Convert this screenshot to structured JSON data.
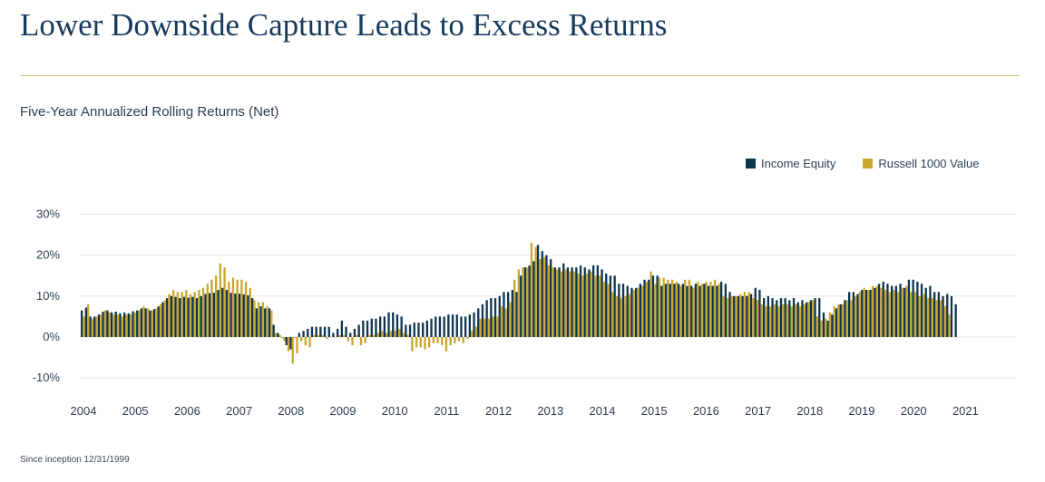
{
  "title": "Lower Downside Capture Leads to Excess Returns",
  "subtitle": "Five-Year Annualized Rolling Returns (Net)",
  "footnote": "Since inception 12/31/1999",
  "colors": {
    "series_a": "#0f3550",
    "series_b": "#c9a62c",
    "grid": "#e6e6e6",
    "rule": "#d8c27a"
  },
  "chart_data": {
    "type": "bar",
    "ylim": [
      -12,
      30
    ],
    "yticks": [
      30,
      20,
      10,
      0,
      -10
    ],
    "ytick_labels": [
      "30%",
      "20%",
      "10%",
      "0%",
      "-10%"
    ],
    "xtick_labels": [
      "2004",
      "2005",
      "2006",
      "2007",
      "2008",
      "2009",
      "2010",
      "2011",
      "2012",
      "2013",
      "2014",
      "2015",
      "2016",
      "2017",
      "2018",
      "2019",
      "2020",
      "2021"
    ],
    "legend_position": "top-right",
    "series": [
      {
        "name": "Income Equity",
        "values": [
          6.5,
          7.2,
          5.0,
          5.0,
          5.5,
          6.2,
          6.5,
          6.0,
          6.2,
          5.8,
          6.0,
          5.8,
          6.3,
          6.5,
          7.0,
          7.0,
          6.5,
          6.8,
          7.5,
          8.5,
          9.5,
          10.0,
          9.8,
          9.5,
          9.8,
          9.6,
          9.8,
          9.5,
          10.0,
          10.5,
          10.7,
          10.8,
          11.5,
          12.0,
          11.5,
          10.8,
          10.6,
          10.6,
          10.4,
          10.2,
          9.5,
          7.0,
          7.5,
          7.0,
          7.0,
          3.0,
          1.0,
          0.0,
          -2.0,
          -3.0,
          0.0,
          1.0,
          1.5,
          2.0,
          2.5,
          2.5,
          2.5,
          2.5,
          2.5,
          1.0,
          2.0,
          4.0,
          2.5,
          1.0,
          2.0,
          3.0,
          4.0,
          4.0,
          4.5,
          4.5,
          5.0,
          5.0,
          6.0,
          6.0,
          5.5,
          5.0,
          3.0,
          3.0,
          3.5,
          3.5,
          3.5,
          4.0,
          4.5,
          5.0,
          5.0,
          5.0,
          5.5,
          5.5,
          5.5,
          5.0,
          5.0,
          5.5,
          6.0,
          7.0,
          8.0,
          9.0,
          9.5,
          9.5,
          10.0,
          11.0,
          11.0,
          11.5,
          11.0,
          15.0,
          17.0,
          17.5,
          18.5,
          22.5,
          21.0,
          20.0,
          19.0,
          17.0,
          17.0,
          18.0,
          17.0,
          17.0,
          17.0,
          17.5,
          17.0,
          16.5,
          17.5,
          17.5,
          16.5,
          15.5,
          15.0,
          15.0,
          13.0,
          13.0,
          12.5,
          12.0,
          12.0,
          13.0,
          14.0,
          14.0,
          15.0,
          15.0,
          12.5,
          13.0,
          13.0,
          13.0,
          13.0,
          13.0,
          12.5,
          12.5,
          13.0,
          12.5,
          13.0,
          12.5,
          12.5,
          12.5,
          13.5,
          13.0,
          11.0,
          10.0,
          10.0,
          10.0,
          10.0,
          10.5,
          12.0,
          11.5,
          9.5,
          10.0,
          9.5,
          9.0,
          9.5,
          9.5,
          9.0,
          9.5,
          8.5,
          9.0,
          8.5,
          9.0,
          9.5,
          9.5,
          6.0,
          4.0,
          5.5,
          7.0,
          8.0,
          9.0,
          11.0,
          11.0,
          10.5,
          11.5,
          11.5,
          11.5,
          12.0,
          13.0,
          13.5,
          13.0,
          12.5,
          12.5,
          13.0,
          12.0,
          14.0,
          14.0,
          13.5,
          13.0,
          12.0,
          12.5,
          11.0,
          11.0,
          10.0,
          10.5,
          10.0,
          8.0
        ]
      },
      {
        "name": "Russell 1000 Value",
        "values": [
          5.0,
          8.0,
          4.5,
          5.0,
          5.5,
          6.5,
          6.0,
          5.5,
          5.5,
          5.0,
          5.5,
          5.5,
          6.0,
          6.5,
          7.5,
          7.0,
          6.5,
          7.0,
          8.0,
          9.0,
          10.5,
          11.5,
          11.0,
          11.0,
          11.5,
          10.5,
          11.0,
          11.5,
          12.0,
          13.0,
          14.0,
          15.0,
          18.0,
          17.0,
          13.5,
          14.5,
          14.0,
          14.0,
          13.5,
          12.0,
          9.0,
          8.5,
          8.5,
          7.5,
          6.5,
          1.0,
          0.5,
          -1.0,
          -3.5,
          -6.5,
          -4.0,
          -1.0,
          -2.0,
          -2.5,
          0.5,
          0.5,
          0.5,
          -0.5,
          0.0,
          0.0,
          0.5,
          0.5,
          -1.0,
          -2.0,
          0.5,
          -2.0,
          -1.5,
          0.5,
          0.5,
          1.0,
          1.5,
          1.0,
          1.5,
          1.5,
          2.0,
          1.0,
          0.5,
          -3.5,
          -2.5,
          -2.5,
          -3.0,
          -2.5,
          -1.5,
          -1.5,
          -2.0,
          -3.5,
          -2.0,
          -1.5,
          -1.0,
          -1.5,
          -0.5,
          1.5,
          2.5,
          4.5,
          4.5,
          4.5,
          5.0,
          5.0,
          7.5,
          7.0,
          8.5,
          14.0,
          16.5,
          17.0,
          17.0,
          23.0,
          22.0,
          19.0,
          19.5,
          17.5,
          17.0,
          16.5,
          16.0,
          16.5,
          16.0,
          16.0,
          15.5,
          15.0,
          15.5,
          16.0,
          15.0,
          15.0,
          13.5,
          13.0,
          11.0,
          10.0,
          9.5,
          10.0,
          10.5,
          11.5,
          12.0,
          12.5,
          13.5,
          16.0,
          13.0,
          14.5,
          14.5,
          14.0,
          14.0,
          13.5,
          12.5,
          14.0,
          14.0,
          12.0,
          13.5,
          13.0,
          13.5,
          13.5,
          14.0,
          13.0,
          10.0,
          9.5,
          10.0,
          10.0,
          10.5,
          11.0,
          11.0,
          9.5,
          9.0,
          8.0,
          7.5,
          7.5,
          8.0,
          7.5,
          8.0,
          8.0,
          7.5,
          8.0,
          7.5,
          8.0,
          8.5,
          9.0,
          5.0,
          4.0,
          4.5,
          6.0,
          7.5,
          8.0,
          8.0,
          9.0,
          9.0,
          10.0,
          11.0,
          12.0,
          11.5,
          12.5,
          12.5,
          12.0,
          11.5,
          11.0,
          11.5,
          11.0,
          12.0,
          12.5,
          11.0,
          11.0,
          10.0,
          10.5,
          9.5,
          9.5,
          9.0,
          9.0,
          7.5,
          5.5
        ]
      }
    ]
  }
}
